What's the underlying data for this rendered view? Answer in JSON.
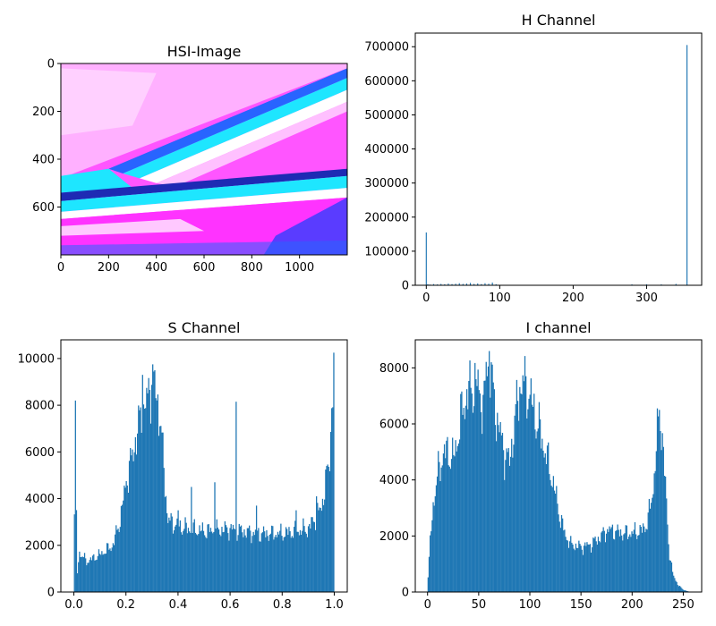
{
  "chart_data": [
    {
      "id": "hsi",
      "type": "image",
      "title": "HSI-Image",
      "xlim": [
        0,
        1200
      ],
      "ylim": [
        800,
        0
      ],
      "xticks": [
        0,
        200,
        400,
        600,
        800,
        1000
      ],
      "yticks": [
        0,
        200,
        400,
        600
      ],
      "colors": {
        "magenta": "#ff33ff",
        "pink": "#ff88ff",
        "light": "#ffc8ff",
        "white": "#ffffff",
        "cyan": "#1ee6ff",
        "blue": "#2864ff",
        "navy": "#1e2ab4"
      }
    },
    {
      "id": "h",
      "type": "histogram",
      "title": "H Channel",
      "xlim": [
        -15,
        375
      ],
      "ylim": [
        0,
        740000
      ],
      "xticks": [
        0,
        100,
        200,
        300
      ],
      "yticks": [
        0,
        100000,
        200000,
        300000,
        400000,
        500000,
        600000,
        700000
      ],
      "color": "#1f77b4",
      "bars": [
        [
          0,
          155000
        ],
        [
          2,
          3000
        ],
        [
          5,
          2000
        ],
        [
          10,
          3500
        ],
        [
          15,
          2500
        ],
        [
          20,
          4000
        ],
        [
          25,
          3000
        ],
        [
          30,
          5000
        ],
        [
          35,
          3500
        ],
        [
          40,
          4500
        ],
        [
          45,
          6000
        ],
        [
          50,
          4000
        ],
        [
          55,
          5000
        ],
        [
          60,
          7000
        ],
        [
          65,
          4000
        ],
        [
          70,
          5500
        ],
        [
          75,
          3500
        ],
        [
          80,
          6000
        ],
        [
          85,
          4500
        ],
        [
          90,
          8000
        ],
        [
          95,
          3000
        ],
        [
          280,
          2500
        ],
        [
          300,
          3000
        ],
        [
          320,
          2500
        ],
        [
          340,
          4000
        ],
        [
          355,
          705000
        ]
      ]
    },
    {
      "id": "s",
      "type": "histogram",
      "title": "S Channel",
      "xlim": [
        -0.05,
        1.05
      ],
      "ylim": [
        0,
        10800
      ],
      "xticks": [
        0.0,
        0.2,
        0.4,
        0.6,
        0.8,
        1.0
      ],
      "yticks": [
        0,
        2000,
        4000,
        6000,
        8000,
        10000
      ],
      "color": "#1f77b4",
      "bins": 256,
      "curve": [
        [
          0.0,
          200
        ],
        [
          0.005,
          8200
        ],
        [
          0.012,
          600
        ],
        [
          0.02,
          1700
        ],
        [
          0.05,
          1300
        ],
        [
          0.1,
          1600
        ],
        [
          0.15,
          2000
        ],
        [
          0.18,
          3200
        ],
        [
          0.2,
          4700
        ],
        [
          0.22,
          5600
        ],
        [
          0.25,
          7200
        ],
        [
          0.28,
          8100
        ],
        [
          0.3,
          9300
        ],
        [
          0.32,
          8300
        ],
        [
          0.34,
          6200
        ],
        [
          0.36,
          3100
        ],
        [
          0.4,
          2800
        ],
        [
          0.5,
          2600
        ],
        [
          0.6,
          2700
        ],
        [
          0.7,
          2500
        ],
        [
          0.8,
          2500
        ],
        [
          0.9,
          2700
        ],
        [
          0.95,
          3600
        ],
        [
          0.98,
          5500
        ],
        [
          0.995,
          8800
        ],
        [
          1.0,
          10200
        ]
      ],
      "spikes": [
        [
          0.005,
          8200
        ],
        [
          0.26,
          9300
        ],
        [
          0.3,
          9750
        ],
        [
          0.31,
          9500
        ],
        [
          0.33,
          7100
        ],
        [
          0.4,
          3500
        ],
        [
          0.45,
          4500
        ],
        [
          0.54,
          4700
        ],
        [
          0.62,
          8150
        ],
        [
          0.7,
          3700
        ],
        [
          0.85,
          3500
        ],
        [
          0.93,
          4100
        ],
        [
          0.995,
          10250
        ]
      ]
    },
    {
      "id": "i",
      "type": "histogram",
      "title": "I channel",
      "xlim": [
        -12,
        268
      ],
      "ylim": [
        0,
        9000
      ],
      "xticks": [
        0,
        50,
        100,
        150,
        200,
        250
      ],
      "yticks": [
        0,
        2000,
        4000,
        6000,
        8000
      ],
      "color": "#1f77b4",
      "bins": 256,
      "curve": [
        [
          0,
          200
        ],
        [
          2,
          1500
        ],
        [
          5,
          3000
        ],
        [
          10,
          4200
        ],
        [
          15,
          4900
        ],
        [
          20,
          5000
        ],
        [
          25,
          4700
        ],
        [
          30,
          5600
        ],
        [
          35,
          6700
        ],
        [
          40,
          7100
        ],
        [
          45,
          7400
        ],
        [
          50,
          7300
        ],
        [
          55,
          6500
        ],
        [
          58,
          8300
        ],
        [
          60,
          8500
        ],
        [
          62,
          7500
        ],
        [
          65,
          6800
        ],
        [
          70,
          5800
        ],
        [
          75,
          5000
        ],
        [
          80,
          4600
        ],
        [
          85,
          6000
        ],
        [
          90,
          7300
        ],
        [
          95,
          7500
        ],
        [
          100,
          7000
        ],
        [
          105,
          6300
        ],
        [
          110,
          5700
        ],
        [
          115,
          5000
        ],
        [
          120,
          4300
        ],
        [
          125,
          3500
        ],
        [
          130,
          2600
        ],
        [
          135,
          2000
        ],
        [
          140,
          1700
        ],
        [
          150,
          1600
        ],
        [
          160,
          1700
        ],
        [
          170,
          2000
        ],
        [
          175,
          2200
        ],
        [
          180,
          2200
        ],
        [
          190,
          2100
        ],
        [
          200,
          2100
        ],
        [
          210,
          2200
        ],
        [
          215,
          2500
        ],
        [
          220,
          3500
        ],
        [
          225,
          5700
        ],
        [
          227,
          6400
        ],
        [
          230,
          5300
        ],
        [
          233,
          3500
        ],
        [
          236,
          1500
        ],
        [
          240,
          600
        ],
        [
          245,
          250
        ],
        [
          250,
          80
        ],
        [
          255,
          20
        ]
      ],
      "spikes": [
        [
          60,
          8600
        ],
        [
          62,
          8200
        ],
        [
          96,
          7700
        ],
        [
          226,
          6500
        ]
      ]
    }
  ]
}
